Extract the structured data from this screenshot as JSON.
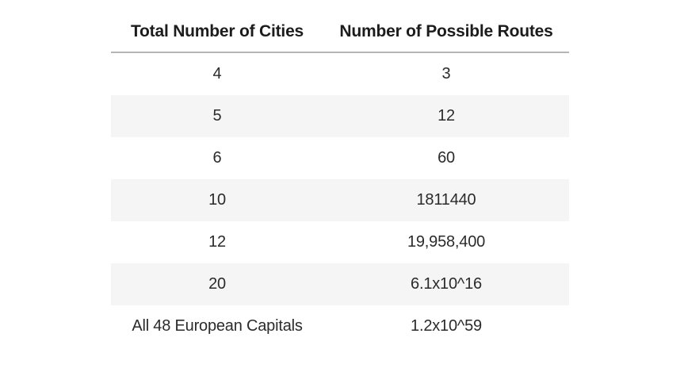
{
  "table": {
    "columns": [
      "Total Number of Cities",
      "Number of Possible Routes"
    ],
    "rows": [
      {
        "cities": "4",
        "routes": "3"
      },
      {
        "cities": "5",
        "routes": "12"
      },
      {
        "cities": "6",
        "routes": "60"
      },
      {
        "cities": "10",
        "routes": "1811440"
      },
      {
        "cities": "12",
        "routes": "19,958,400"
      },
      {
        "cities": "20",
        "routes": "6.1x10^16"
      },
      {
        "cities": "All 48 European Capitals",
        "routes": "1.2x10^59"
      }
    ]
  },
  "colors": {
    "page_bg": "#ffffff",
    "row_alt_bg": "#f5f5f5",
    "header_divider": "#b5b5b5",
    "header_text": "#1c1c1c",
    "body_text": "#2b2b2b"
  },
  "chart_data": {
    "type": "table",
    "title": "",
    "columns": [
      "Total Number of Cities",
      "Number of Possible Routes"
    ],
    "rows": [
      [
        "4",
        "3"
      ],
      [
        "5",
        "12"
      ],
      [
        "6",
        "60"
      ],
      [
        "10",
        "1811440"
      ],
      [
        "12",
        "19,958,400"
      ],
      [
        "20",
        "6.1x10^16"
      ],
      [
        "All 48 European Capitals",
        "1.2x10^59"
      ]
    ],
    "layout_hints": {
      "alternating_row_shading": true,
      "header_bold": true,
      "cell_alignment": "center"
    }
  }
}
